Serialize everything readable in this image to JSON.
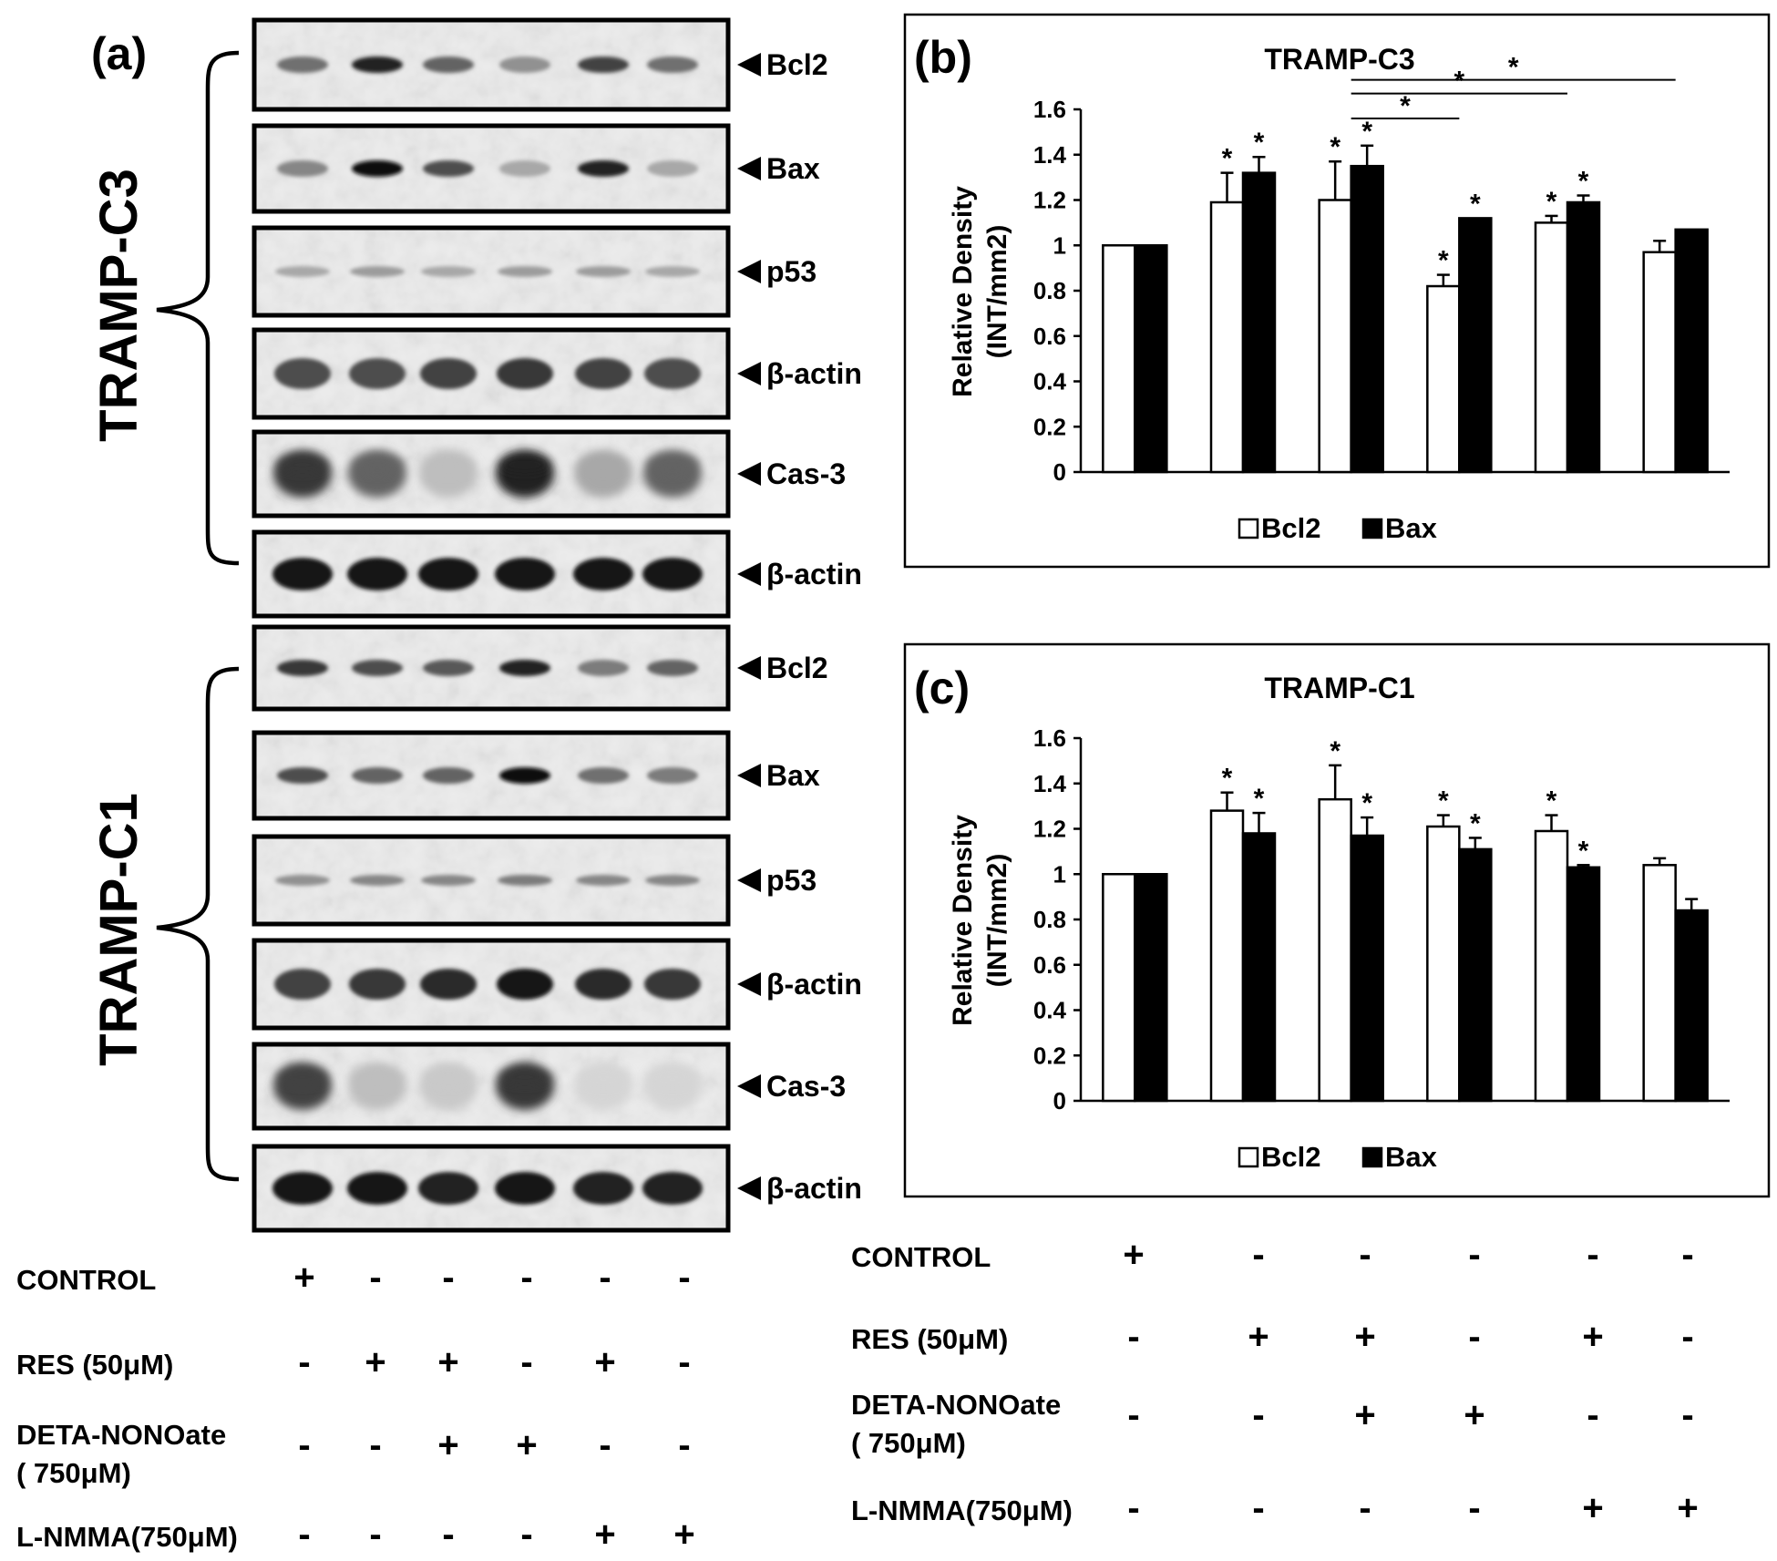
{
  "panel_a": {
    "label": "(a)",
    "cell_lines": [
      "TRAMP-C3",
      "TRAMP-C1"
    ],
    "blots": [
      {
        "group": 0,
        "label": "Bcl2",
        "style": "sharp",
        "intensity": [
          0.55,
          0.9,
          0.6,
          0.4,
          0.75,
          0.55
        ]
      },
      {
        "group": 0,
        "label": "Bax",
        "style": "sharp",
        "intensity": [
          0.45,
          1.0,
          0.7,
          0.3,
          0.9,
          0.3
        ]
      },
      {
        "group": 0,
        "label": "p53",
        "style": "faint",
        "intensity": [
          0.3,
          0.35,
          0.3,
          0.35,
          0.35,
          0.3
        ]
      },
      {
        "group": 0,
        "label": "β-actin",
        "style": "thick",
        "intensity": [
          0.7,
          0.7,
          0.75,
          0.8,
          0.75,
          0.7
        ]
      },
      {
        "group": 0,
        "label": "Cas-3",
        "style": "smear",
        "intensity": [
          0.8,
          0.6,
          0.2,
          0.9,
          0.3,
          0.6
        ]
      },
      {
        "group": 0,
        "label": "β-actin",
        "style": "heavy",
        "intensity": [
          0.95,
          0.95,
          0.95,
          0.95,
          0.95,
          0.95
        ]
      },
      {
        "group": 1,
        "label": "Bcl2",
        "style": "sharp",
        "intensity": [
          0.8,
          0.7,
          0.65,
          0.9,
          0.5,
          0.6
        ]
      },
      {
        "group": 1,
        "label": "Bax",
        "style": "sharp",
        "intensity": [
          0.7,
          0.6,
          0.6,
          1.0,
          0.55,
          0.5
        ]
      },
      {
        "group": 1,
        "label": "p53",
        "style": "faint",
        "intensity": [
          0.4,
          0.45,
          0.45,
          0.5,
          0.45,
          0.45
        ]
      },
      {
        "group": 1,
        "label": "β-actin",
        "style": "thick",
        "intensity": [
          0.75,
          0.8,
          0.85,
          0.95,
          0.85,
          0.8
        ]
      },
      {
        "group": 1,
        "label": "Cas-3",
        "style": "smear",
        "intensity": [
          0.75,
          0.2,
          0.15,
          0.8,
          0.1,
          0.1
        ]
      },
      {
        "group": 1,
        "label": "β-actin",
        "style": "heavy",
        "intensity": [
          0.95,
          0.95,
          0.9,
          0.95,
          0.9,
          0.9
        ]
      }
    ]
  },
  "treatments": [
    {
      "label": "CONTROL",
      "marks": [
        "+",
        "-",
        "-",
        "-",
        "-",
        "-"
      ]
    },
    {
      "label": "RES (50μM)",
      "marks": [
        "-",
        "+",
        "+",
        "-",
        "+",
        "-"
      ]
    },
    {
      "label": "DETA-NONOate",
      "label2": "( 750μM)",
      "marks": [
        "-",
        "-",
        "+",
        "+",
        "-",
        "-"
      ]
    },
    {
      "label": "L-NMMA(750μM)",
      "marks": [
        "-",
        "-",
        "-",
        "-",
        "+",
        "+"
      ]
    }
  ],
  "chart_data": [
    {
      "panel": "(b)",
      "type": "bar",
      "title": "TRAMP-C3",
      "ylabel": "Relative Density",
      "ylabel2": "(INT/mm2)",
      "ylim": [
        0,
        1.6
      ],
      "yticks": [
        0,
        0.2,
        0.4,
        0.6,
        0.8,
        1,
        1.2,
        1.4,
        1.6
      ],
      "ytick_labels": [
        "0",
        "0.2",
        "0.4",
        "0.6",
        "0.8",
        "1",
        "1.2",
        "1.4",
        "1.6"
      ],
      "groups": 6,
      "legend_position": "bottom",
      "series": [
        {
          "name": "Bcl2",
          "color": "#ffffff",
          "values": [
            1.0,
            1.19,
            1.2,
            0.82,
            1.1,
            0.97
          ],
          "errors": [
            0,
            0.13,
            0.17,
            0.05,
            0.03,
            0.05
          ],
          "sig": [
            false,
            true,
            true,
            true,
            true,
            false
          ]
        },
        {
          "name": "Bax",
          "color": "#000000",
          "values": [
            1.0,
            1.32,
            1.35,
            1.12,
            1.19,
            1.07
          ],
          "errors": [
            0,
            0.07,
            0.09,
            0,
            0.03,
            0
          ],
          "sig": [
            false,
            true,
            true,
            true,
            true,
            false
          ]
        }
      ],
      "significance_bars": [
        {
          "from_group": 2,
          "to_group": 5,
          "level": 1.73,
          "label": "*"
        },
        {
          "from_group": 2,
          "to_group": 4,
          "level": 1.67,
          "label": "*"
        },
        {
          "from_group": 2,
          "to_group": 3,
          "level": 1.56,
          "label": "*"
        }
      ]
    },
    {
      "panel": "(c)",
      "type": "bar",
      "title": "TRAMP-C1",
      "ylabel": "Relative Density",
      "ylabel2": "(INT/mm2)",
      "ylim": [
        0,
        1.6
      ],
      "yticks": [
        0,
        0.2,
        0.4,
        0.6,
        0.8,
        1,
        1.2,
        1.4,
        1.6
      ],
      "ytick_labels": [
        "0",
        "0.2",
        "0.4",
        "0.6",
        "0.8",
        "1",
        "1.2",
        "1.4",
        "1.6"
      ],
      "groups": 6,
      "legend_position": "bottom",
      "series": [
        {
          "name": "Bcl2",
          "color": "#ffffff",
          "values": [
            1.0,
            1.28,
            1.33,
            1.21,
            1.19,
            1.04
          ],
          "errors": [
            0,
            0.08,
            0.15,
            0.05,
            0.07,
            0.03
          ],
          "sig": [
            false,
            true,
            true,
            true,
            true,
            false
          ]
        },
        {
          "name": "Bax",
          "color": "#000000",
          "values": [
            1.0,
            1.18,
            1.17,
            1.11,
            1.03,
            0.84
          ],
          "errors": [
            0,
            0.09,
            0.08,
            0.05,
            0.01,
            0.05
          ],
          "sig": [
            false,
            true,
            true,
            true,
            true,
            false
          ]
        }
      ],
      "significance_bars": []
    }
  ]
}
